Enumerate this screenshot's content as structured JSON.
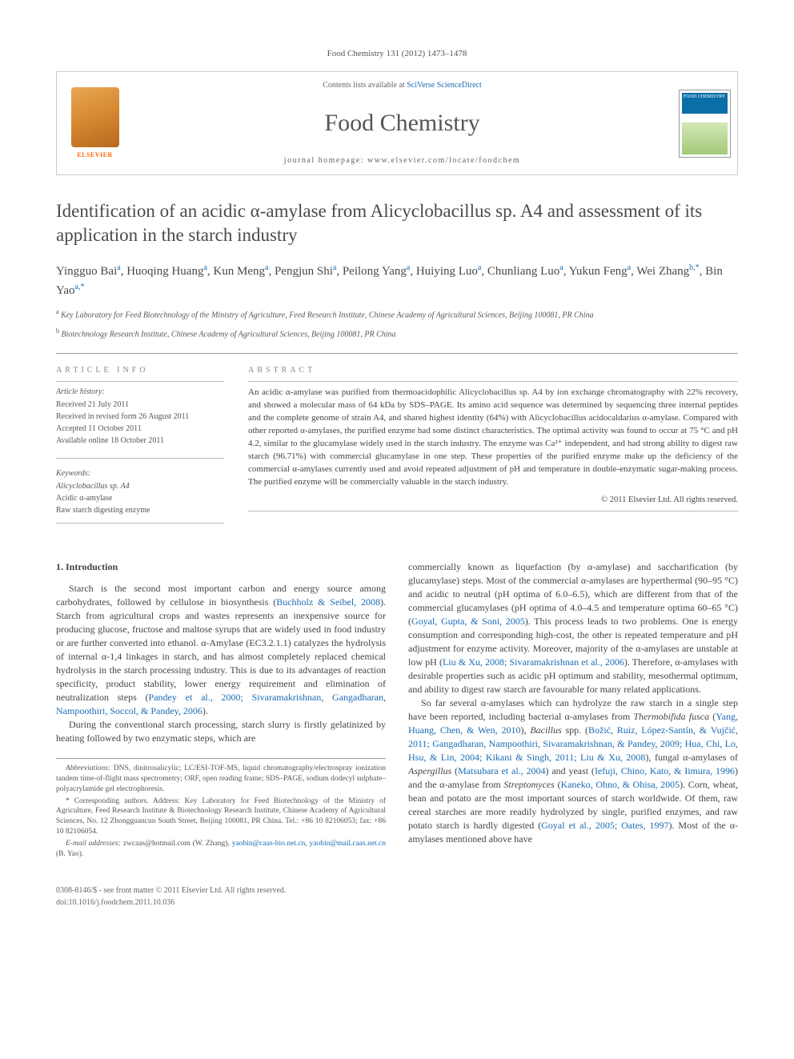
{
  "journal_ref": "Food Chemistry 131 (2012) 1473–1478",
  "header": {
    "contents_line_prefix": "Contents lists available at ",
    "contents_line_link": "SciVerse ScienceDirect",
    "journal_title": "Food Chemistry",
    "homepage_prefix": "journal homepage: ",
    "homepage_url": "www.elsevier.com/locate/foodchem",
    "elsevier_label": "ELSEVIER",
    "cover_label": "FOOD CHEMISTRY"
  },
  "title": "Identification of an acidic α-amylase from Alicyclobacillus sp. A4 and assessment of its application in the starch industry",
  "authors_html": "Yingguo Bai<sup>a</sup>, Huoqing Huang<sup>a</sup>, Kun Meng<sup>a</sup>, Pengjun Shi<sup>a</sup>, Peilong Yang<sup>a</sup>, Huiying Luo<sup>a</sup>, Chunliang Luo<sup>a</sup>, Yukun Feng<sup>a</sup>, Wei Zhang<sup>b,*</sup>, Bin Yao<sup>a,*</sup>",
  "affiliations": {
    "a": "Key Laboratory for Feed Biotechnology of the Ministry of Agriculture, Feed Research Institute, Chinese Academy of Agricultural Sciences, Beijing 100081, PR China",
    "b": "Biotechnology Research Institute, Chinese Academy of Agricultural Sciences, Beijing 100081, PR China"
  },
  "article_info": {
    "label": "ARTICLE INFO",
    "history_label": "Article history:",
    "history": [
      "Received 21 July 2011",
      "Received in revised form 26 August 2011",
      "Accepted 11 October 2011",
      "Available online 18 October 2011"
    ],
    "keywords_label": "Keywords:",
    "keywords": [
      "Alicyclobacillus sp. A4",
      "Acidic α-amylase",
      "Raw starch digesting enzyme"
    ]
  },
  "abstract": {
    "label": "ABSTRACT",
    "text": "An acidic α-amylase was purified from thermoacidophilic Alicyclobacillus sp. A4 by ion exchange chromatography with 22% recovery, and showed a molecular mass of 64 kDa by SDS–PAGE. Its amino acid sequence was determined by sequencing three internal peptides and the complete genome of strain A4, and shared highest identity (64%) with Alicyclobacillus acidocaldarius α-amylase. Compared with other reported α-amylases, the purified enzyme had some distinct characteristics. The optimal activity was found to occur at 75 °C and pH 4.2, similar to the glucamylase widely used in the starch industry. The enzyme was Ca²⁺ independent, and had strong ability to digest raw starch (96.71%) with commercial glucamylase in one step. These properties of the purified enzyme make up the deficiency of the commercial α-amylases currently used and avoid repeated adjustment of pH and temperature in double-enzymatic sugar-making process. The purified enzyme will be commercially valuable in the starch industry.",
    "copyright": "© 2011 Elsevier Ltd. All rights reserved."
  },
  "body": {
    "intro_heading": "1. Introduction",
    "col1_p1": "Starch is the second most important carbon and energy source among carbohydrates, followed by cellulose in biosynthesis (<span class=\"cite\">Buchholz & Seibel, 2008</span>). Starch from agricultural crops and wastes represents an inexpensive source for producing glucose, fructose and maltose syrups that are widely used in food industry or are further converted into ethanol. α-Amylase (EC3.2.1.1) catalyzes the hydrolysis of internal α-1,4 linkages in starch, and has almost completely replaced chemical hydrolysis in the starch processing industry. This is due to its advantages of reaction specificity, product stability, lower energy requirement and elimination of neutralization steps (<span class=\"cite\">Pandey et al., 2000; Sivaramakrishnan, Gangadharan, Nampoothiri, Soccol, & Pandey, 2006</span>).",
    "col1_p2": "During the conventional starch processing, starch slurry is firstly gelatinized by heating followed by two enzymatic steps, which are",
    "col2_p1": "commercially known as liquefaction (by α-amylase) and saccharification (by glucamylase) steps. Most of the commercial α-amylases are hyperthermal (90–95 °C) and acidic to neutral (pH optima of 6.0–6.5), which are different from that of the commercial glucamylases (pH optima of 4.0–4.5 and temperature optima 60–65 °C) (<span class=\"cite\">Goyal, Gupta, & Soni, 2005</span>). This process leads to two problems. One is energy consumption and corresponding high-cost, the other is repeated temperature and pH adjustment for enzyme activity. Moreover, majority of the α-amylases are unstable at low pH (<span class=\"cite\">Liu & Xu, 2008; Sivaramakrishnan et al., 2006</span>). Therefore, α-amylases with desirable properties such as acidic pH optimum and stability, mesothermal optimum, and ability to digest raw starch are favourable for many related applications.",
    "col2_p2": "So far several α-amylases which can hydrolyze the raw starch in a single step have been reported, including bacterial α-amylases from <i>Thermobifida fusca</i> (<span class=\"cite\">Yang, Huang, Chen, & Wen, 2010</span>), <i>Bacillus</i> spp. (<span class=\"cite\">Božić, Ruiz, López-Santín, & Vujčić, 2011; Gangadharan, Nampoothiri, Sivaramakrishnan, & Pandey, 2009; Hua, Chi, Lo, Hsu, & Lin, 2004; Kikani & Singh, 2011; Liu & Xu, 2008</span>), fungal α-amylases of <i>Aspergillus</i> (<span class=\"cite\">Matsubara et al., 2004</span>) and yeast (<span class=\"cite\">Iefuji, Chino, Kato, & Iimura, 1996</span>) and the α-amylase from <i>Streptomyces</i> (<span class=\"cite\">Kaneko, Ohno, & Ohisa, 2005</span>). Corn, wheat, bean and potato are the most important sources of starch worldwide. Of them, raw cereal starches are more readily hydrolyzed by single, purified enzymes, and raw potato starch is hardly digested (<span class=\"cite\">Goyal et al., 2005; Oates, 1997</span>). Most of the α-amylases mentioned above have"
  },
  "footnotes": {
    "abbrev": "<i>Abbreviations:</i> DNS, dinitrosalicylic; LC/ESI-TOF-MS, liquid chromatography/electrospray ionization tandem time-of-flight mass spectrometry; ORF, open reading frame; SDS–PAGE, sodium dodecyl sulphate–polyacrylamide gel electrophoresis.",
    "corr": "* Corresponding authors. Address: Key Laboratory for Feed Biotechnology of the Ministry of Agriculture, Feed Research Institute & Biotechnology Research Institute, Chinese Academy of Agricultural Sciences, No. 12 Zhongguancun South Street, Beijing 100081, PR China. Tel.: +86 10 82106053; fax: +86 10 82106054.",
    "email": "<i>E-mail addresses:</i> zwcaas@hotmail.com (W. Zhang), <span class=\"cite\">yaobin@caas-bio.net.cn</span>, <span class=\"cite\">yaobin@mail.caas.net.cn</span> (B. Yao)."
  },
  "footer": {
    "line1": "0308-8146/$ - see front matter © 2011 Elsevier Ltd. All rights reserved.",
    "line2": "doi:10.1016/j.foodchem.2011.10.036"
  },
  "colors": {
    "link": "#1a6bb3",
    "text": "#444444",
    "border": "#cccccc"
  }
}
